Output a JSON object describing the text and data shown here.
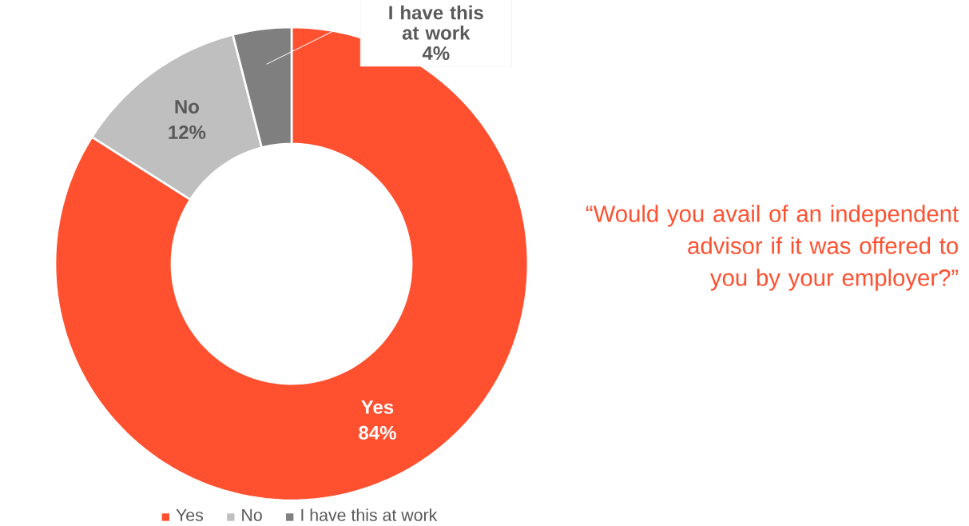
{
  "chart_data": {
    "type": "donut",
    "title": "“Would you avail of an independent advisor if it was offered to you by your employer?”",
    "categories": [
      "Yes",
      "No",
      "I have this at work"
    ],
    "values": [
      84,
      12,
      4
    ],
    "colors": [
      "#ff5030",
      "#bfbfbf",
      "#7f7f7f"
    ],
    "value_labels": [
      "84%",
      "12%",
      "4%"
    ],
    "legend": "bottom"
  }
}
